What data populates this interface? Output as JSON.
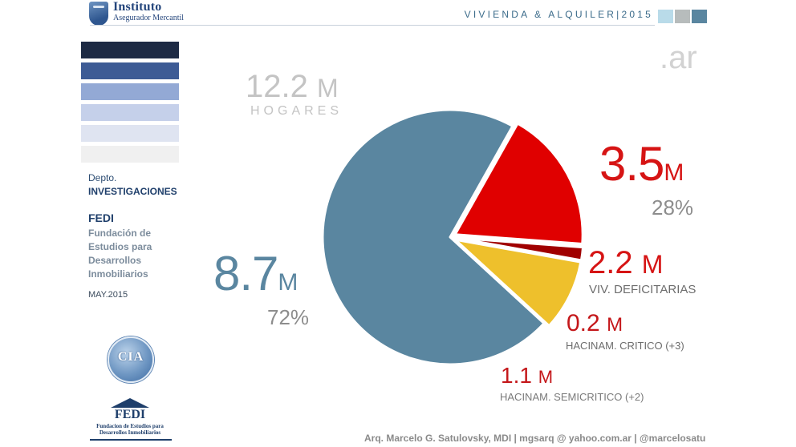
{
  "header": {
    "logo_name": "Instituto",
    "logo_sub": "Asegurador Mercantil",
    "title": "VIVIENDA & ALQUILER|2015",
    "squares": [
      "#b9dbe9",
      "#b7bcbc",
      "#5a86a0"
    ]
  },
  "sidebar": {
    "swatches": [
      "#1d2a44",
      "#3d5b95",
      "#93a9d5",
      "#c5d0ea",
      "#dfe4f1",
      "#f0f0f0"
    ],
    "dept": "Depto.",
    "dept_name": "INVESTIGACIONES",
    "org": "FEDI",
    "org_full": "Fundación de Estudios para Desarrollos Inmobiliarios",
    "date": "MAY.2015",
    "cia_logo": "CIA",
    "fedi_logo": "FEDI",
    "fedi_logo_sub": "Fundacion de Estudios para Desarrollos Inmobiliarios"
  },
  "brand_suffix": ".ar",
  "footer": "Arq. Marcelo G. Satulovsky, MDI  |  mgsarq @ yahoo.com.ar  |  @marcelosatu",
  "chart_data": {
    "type": "pie",
    "total": {
      "value": "12.2",
      "unit": "M",
      "label": "HOGARES"
    },
    "groups": [
      {
        "value": "8.7",
        "unit": "M",
        "percent": "72%",
        "color": "#5a86a0"
      },
      {
        "value": "3.5",
        "unit": "M",
        "percent": "28%",
        "color": "#d61414"
      }
    ],
    "slices": [
      {
        "label": "",
        "value": 8.7,
        "color": "#5a86a0",
        "exploded": false
      },
      {
        "label": "VIV. DEFICITARIAS",
        "value": 2.2,
        "display": "2.2",
        "unit": "M",
        "color": "#e00000",
        "exploded": true
      },
      {
        "label": "HACINAM. CRITICO (+3)",
        "value": 0.2,
        "display": "0.2",
        "unit": "M",
        "color": "#a00000",
        "exploded": true
      },
      {
        "label": "HACINAM. SEMICRITICO (+2)",
        "value": 1.1,
        "display": "1.1",
        "unit": "M",
        "color": "#eec02c",
        "exploded": true
      }
    ]
  }
}
